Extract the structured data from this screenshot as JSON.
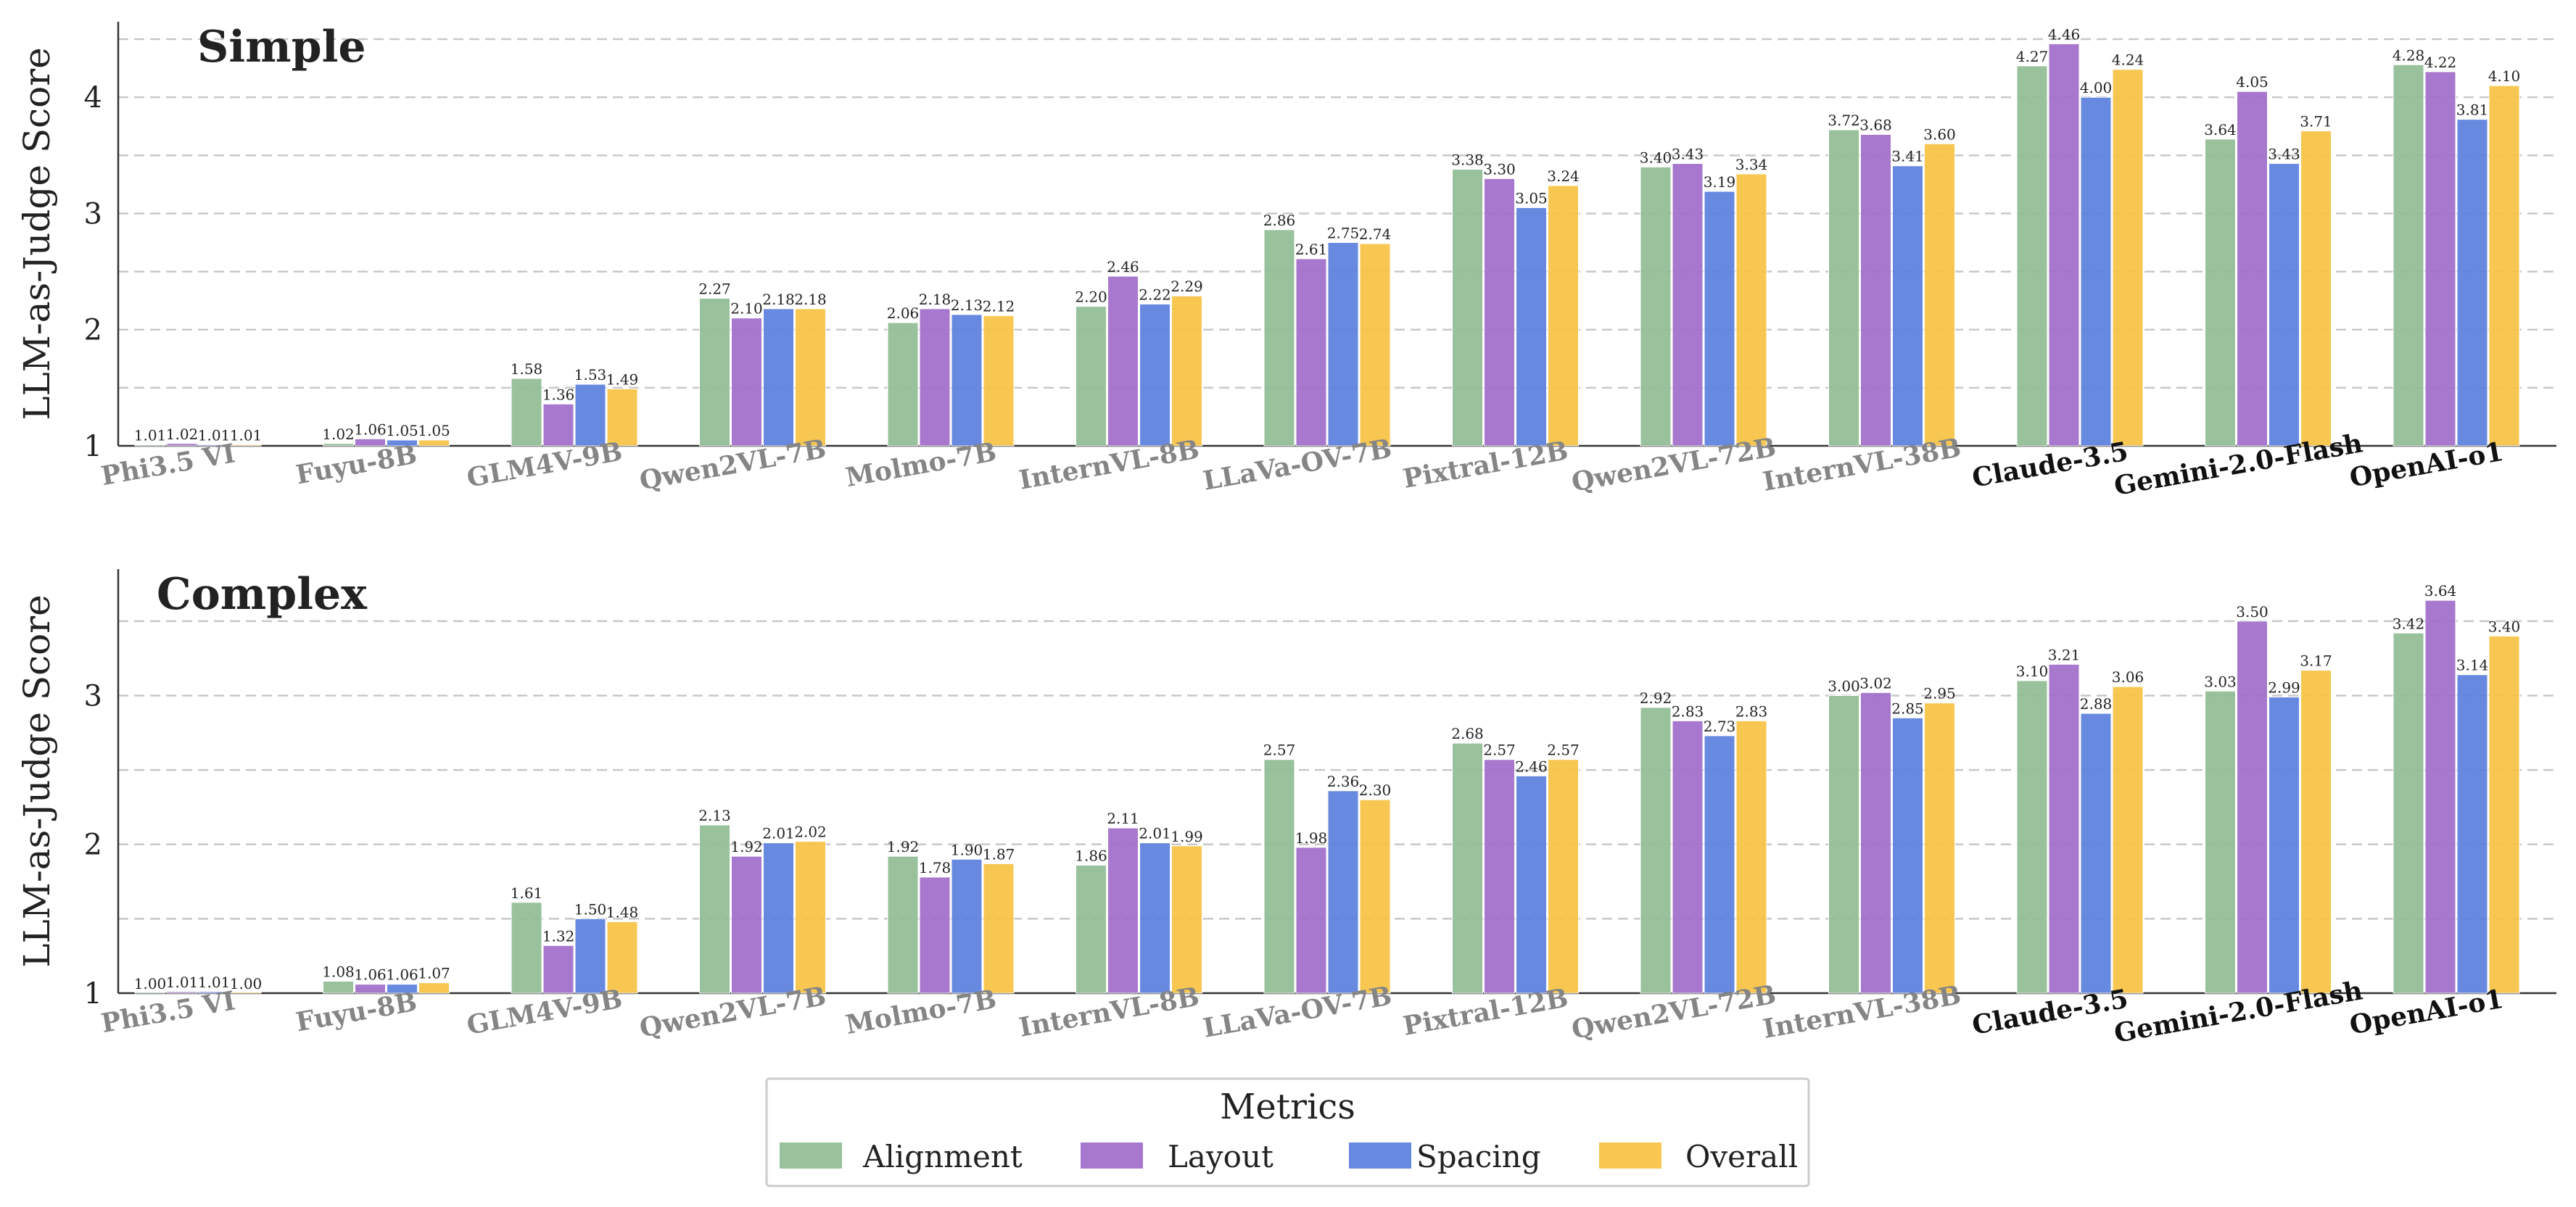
{
  "chart_data": [
    {
      "type": "bar",
      "title": "Simple",
      "ylabel": "LLM-as-Judge Score",
      "ylim": [
        1,
        4.65
      ],
      "yticks": [
        "1",
        "2",
        "3",
        "4"
      ],
      "grid": true,
      "categories": [
        "Phi3.5 VI",
        "Fuyu-8B",
        "GLM4V-9B",
        "Qwen2VL-7B",
        "Molmo-7B",
        "InternVL-8B",
        "LLaVa-OV-7B",
        "Pixtral-12B",
        "Qwen2VL-72B",
        "InternVL-38B",
        "Claude-3.5",
        "Gemini-2.0-Flash",
        "OpenAI-o1"
      ],
      "series": [
        {
          "name": "Alignment",
          "values": [
            1.01,
            1.02,
            1.58,
            2.27,
            2.06,
            2.2,
            2.86,
            3.38,
            3.4,
            3.72,
            4.27,
            3.64,
            4.28
          ],
          "labels": [
            "1.01",
            "1.02",
            "1.58",
            "2.27",
            "2.06",
            "2.20",
            "2.86",
            "3.38",
            "3.40",
            "3.72",
            "4.27",
            "3.64",
            "4.28"
          ]
        },
        {
          "name": "Layout",
          "values": [
            1.02,
            1.06,
            1.36,
            2.1,
            2.18,
            2.46,
            2.61,
            3.3,
            3.43,
            3.68,
            4.46,
            4.05,
            4.22
          ],
          "labels": [
            "1.02",
            "1.06",
            "1.36",
            "2.10",
            "2.18",
            "2.46",
            "2.61",
            "3.30",
            "3.43",
            "3.68",
            "4.46",
            "4.05",
            "4.22"
          ]
        },
        {
          "name": "Spacing",
          "values": [
            1.01,
            1.05,
            1.53,
            2.18,
            2.13,
            2.22,
            2.75,
            3.05,
            3.19,
            3.41,
            4.0,
            3.43,
            3.81
          ],
          "labels": [
            "1.01",
            "1.05",
            "1.53",
            "2.18",
            "2.13",
            "2.22",
            "2.75",
            "3.05",
            "3.19",
            "3.41",
            "4.00",
            "3.43",
            "3.81"
          ]
        },
        {
          "name": "Overall",
          "values": [
            1.01,
            1.05,
            1.49,
            2.18,
            2.12,
            2.29,
            2.74,
            3.24,
            3.34,
            3.6,
            4.24,
            3.71,
            4.1
          ],
          "labels": [
            "1.01",
            "1.05",
            "1.49",
            "2.18",
            "2.12",
            "2.29",
            "2.74",
            "3.24",
            "3.34",
            "3.60",
            "4.24",
            "3.71",
            "4.10"
          ]
        }
      ]
    },
    {
      "type": "bar",
      "title": "Complex",
      "ylabel": "LLM-as-Judge Score",
      "ylim": [
        1,
        3.85
      ],
      "yticks": [
        "1",
        "2",
        "3"
      ],
      "grid": true,
      "categories": [
        "Phi3.5 VI",
        "Fuyu-8B",
        "GLM4V-9B",
        "Qwen2VL-7B",
        "Molmo-7B",
        "InternVL-8B",
        "LLaVa-OV-7B",
        "Pixtral-12B",
        "Qwen2VL-72B",
        "InternVL-38B",
        "Claude-3.5",
        "Gemini-2.0-Flash",
        "OpenAI-o1"
      ],
      "series": [
        {
          "name": "Alignment",
          "values": [
            1.0,
            1.08,
            1.61,
            2.13,
            1.92,
            1.86,
            2.57,
            2.68,
            2.92,
            3.0,
            3.1,
            3.03,
            3.42
          ],
          "labels": [
            "1.00",
            "1.08",
            "1.61",
            "2.13",
            "1.92",
            "1.86",
            "2.57",
            "2.68",
            "2.92",
            "3.00",
            "3.10",
            "3.03",
            "3.42"
          ]
        },
        {
          "name": "Layout",
          "values": [
            1.01,
            1.06,
            1.32,
            1.92,
            1.78,
            2.11,
            1.98,
            2.57,
            2.83,
            3.02,
            3.21,
            3.5,
            3.64
          ],
          "labels": [
            "1.01",
            "1.06",
            "1.32",
            "1.92",
            "1.78",
            "2.11",
            "1.98",
            "2.57",
            "2.83",
            "3.02",
            "3.21",
            "3.50",
            "3.64"
          ]
        },
        {
          "name": "Spacing",
          "values": [
            1.01,
            1.06,
            1.5,
            2.01,
            1.9,
            2.01,
            2.36,
            2.46,
            2.73,
            2.85,
            2.88,
            2.99,
            3.14
          ],
          "labels": [
            "1.01",
            "1.06",
            "1.50",
            "2.01",
            "1.90",
            "2.01",
            "2.36",
            "2.46",
            "2.73",
            "2.85",
            "2.88",
            "2.99",
            "3.14"
          ]
        },
        {
          "name": "Overall",
          "values": [
            1.0,
            1.07,
            1.48,
            2.02,
            1.87,
            1.99,
            2.3,
            2.57,
            2.83,
            2.95,
            3.06,
            3.17,
            3.4
          ],
          "labels": [
            "1.00",
            "1.07",
            "1.48",
            "2.02",
            "1.87",
            "1.99",
            "2.30",
            "2.57",
            "2.83",
            "2.95",
            "3.06",
            "3.17",
            "3.40"
          ]
        }
      ]
    }
  ],
  "proprietary_models": [
    "Claude-3.5",
    "Gemini-2.0-Flash",
    "OpenAI-o1"
  ],
  "colors": {
    "Alignment": "#8fbc94",
    "Layout": "#a06cc9",
    "Spacing": "#5b7fdd",
    "Overall": "#f6c242",
    "open_label": "#858585",
    "closed_label": "#111111",
    "grid": "#c8c8c8"
  },
  "legend": {
    "title": "Metrics",
    "placement": "bottom-center",
    "items": [
      "Alignment",
      "Layout",
      "Spacing",
      "Overall"
    ]
  }
}
